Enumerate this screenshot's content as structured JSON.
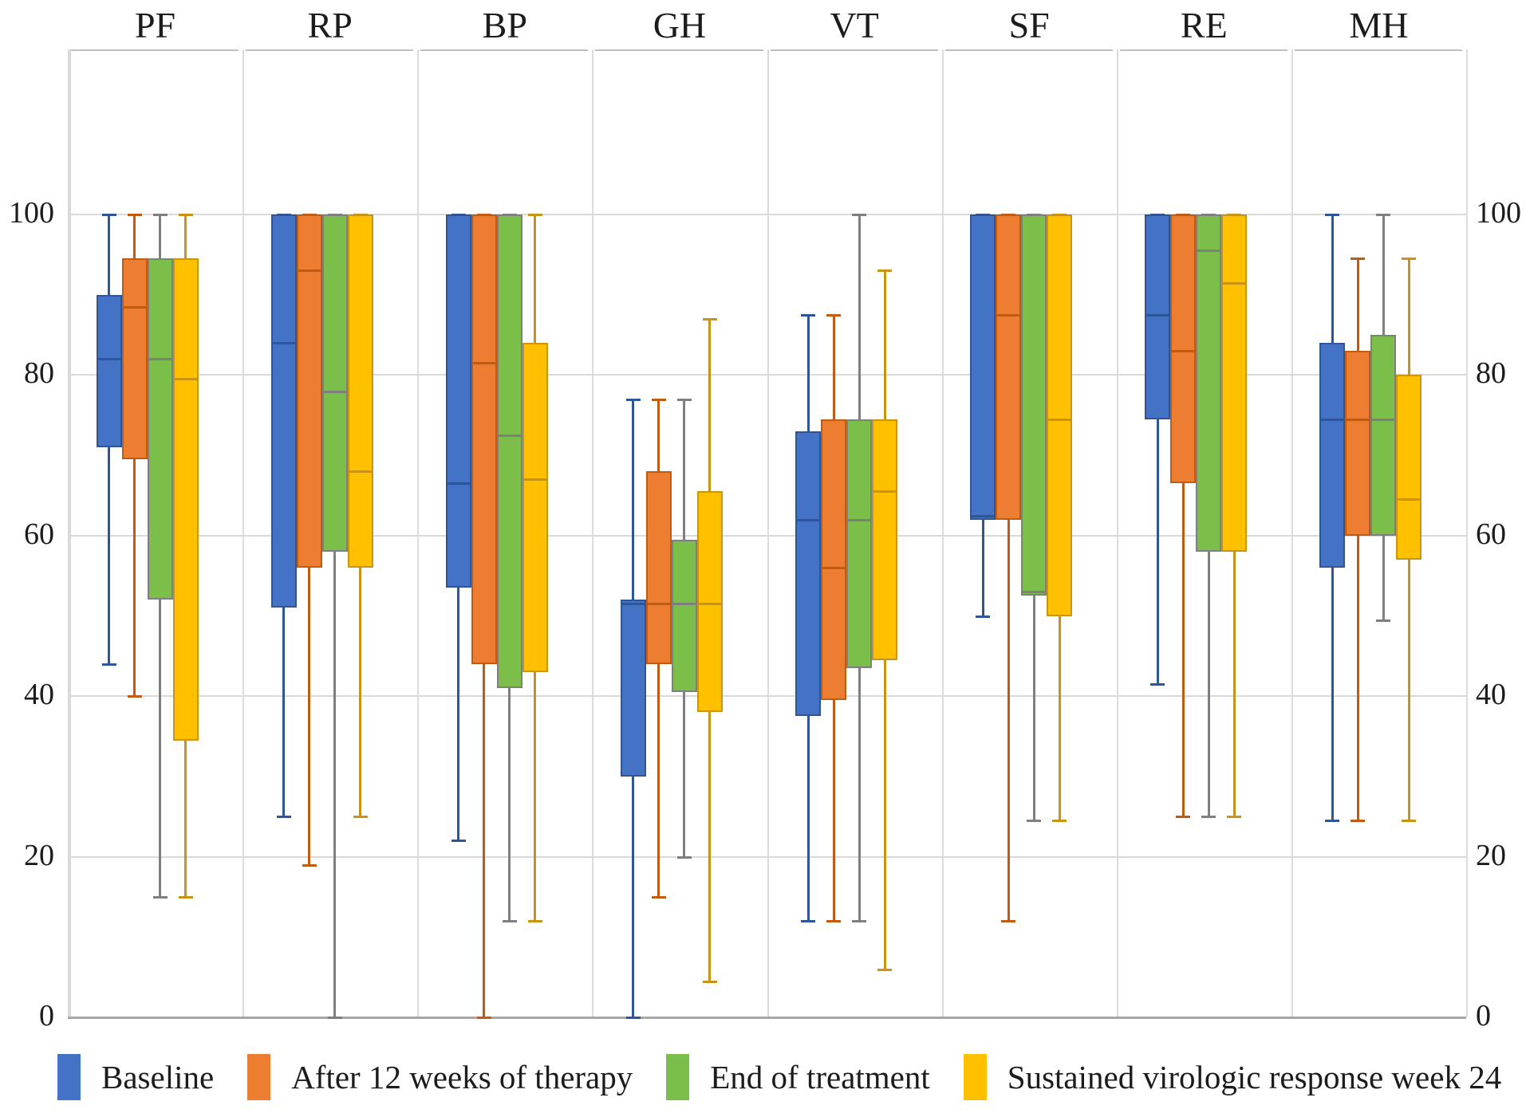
{
  "chart_data": {
    "type": "box",
    "title": "",
    "categories": [
      "PF",
      "RP",
      "BP",
      "GH",
      "VT",
      "SF",
      "RE",
      "MH"
    ],
    "y_axis": {
      "ticks": [
        0,
        20,
        40,
        60,
        80,
        100
      ],
      "range_shown": [
        0,
        120
      ],
      "left_labels": true,
      "right_labels": true,
      "grid": true
    },
    "legend_position": "bottom",
    "series": [
      {
        "name": "Baseline",
        "fill": "#4472C4",
        "line": "#2E5597",
        "boxes": [
          [
            44,
            71,
            82,
            90,
            100
          ],
          [
            25,
            51,
            84,
            100,
            100
          ],
          [
            22,
            53.5,
            66.5,
            100,
            100
          ],
          [
            0,
            30,
            51.5,
            52,
            77
          ],
          [
            12,
            37.5,
            62,
            73,
            87.5
          ],
          [
            50,
            62,
            62.5,
            100,
            100
          ],
          [
            41.5,
            74.5,
            87.5,
            100,
            100
          ],
          [
            24.5,
            56,
            74.5,
            84,
            100
          ]
        ]
      },
      {
        "name": "After 12 weeks of therapy",
        "fill": "#ED7D31",
        "line": "#C05B11",
        "boxes": [
          [
            40,
            69.5,
            88.5,
            94.5,
            100
          ],
          [
            19,
            56,
            93,
            100,
            100
          ],
          [
            0,
            44,
            81.5,
            100,
            100
          ],
          [
            15,
            44,
            51.5,
            68,
            77
          ],
          [
            12,
            39.5,
            56,
            74.5,
            87.5
          ],
          [
            12,
            62,
            87.5,
            100,
            100
          ],
          [
            25,
            66.5,
            83,
            100,
            100
          ],
          [
            24.5,
            60,
            74.5,
            83,
            94.5
          ]
        ]
      },
      {
        "name": "End of treatment",
        "fill": "#7CBE4A",
        "line": "#7F7F7F",
        "boxes": [
          [
            15,
            52,
            82,
            94.5,
            100
          ],
          [
            0,
            58,
            78,
            100,
            100
          ],
          [
            12,
            41,
            72.5,
            100,
            100
          ],
          [
            20,
            40.5,
            51.5,
            59.5,
            77
          ],
          [
            12,
            43.5,
            62,
            74.5,
            100
          ],
          [
            24.5,
            52.5,
            53,
            100,
            100
          ],
          [
            25,
            58,
            95.5,
            100,
            100
          ],
          [
            49.5,
            60,
            74.5,
            85,
            100
          ]
        ]
      },
      {
        "name": "Sustained virologic response week 24",
        "fill": "#FFC000",
        "line": "#C99412",
        "boxes": [
          [
            15,
            34.5,
            79.5,
            94.5,
            100
          ],
          [
            25,
            56,
            68,
            100,
            100
          ],
          [
            12,
            43,
            67,
            84,
            100
          ],
          [
            4.5,
            38,
            51.5,
            65.5,
            87
          ],
          [
            6,
            44.5,
            65.5,
            74.5,
            93
          ],
          [
            24.5,
            50,
            74.5,
            100,
            100
          ],
          [
            25,
            58,
            91.5,
            100,
            100
          ],
          [
            24.5,
            57,
            64.5,
            80,
            94.5
          ]
        ]
      }
    ],
    "colors": {
      "gridline": "#d9d9d9",
      "panel_border": "#bfbfbf",
      "axis_line": "#a6a6a6",
      "text": "#1c1c1c"
    }
  }
}
